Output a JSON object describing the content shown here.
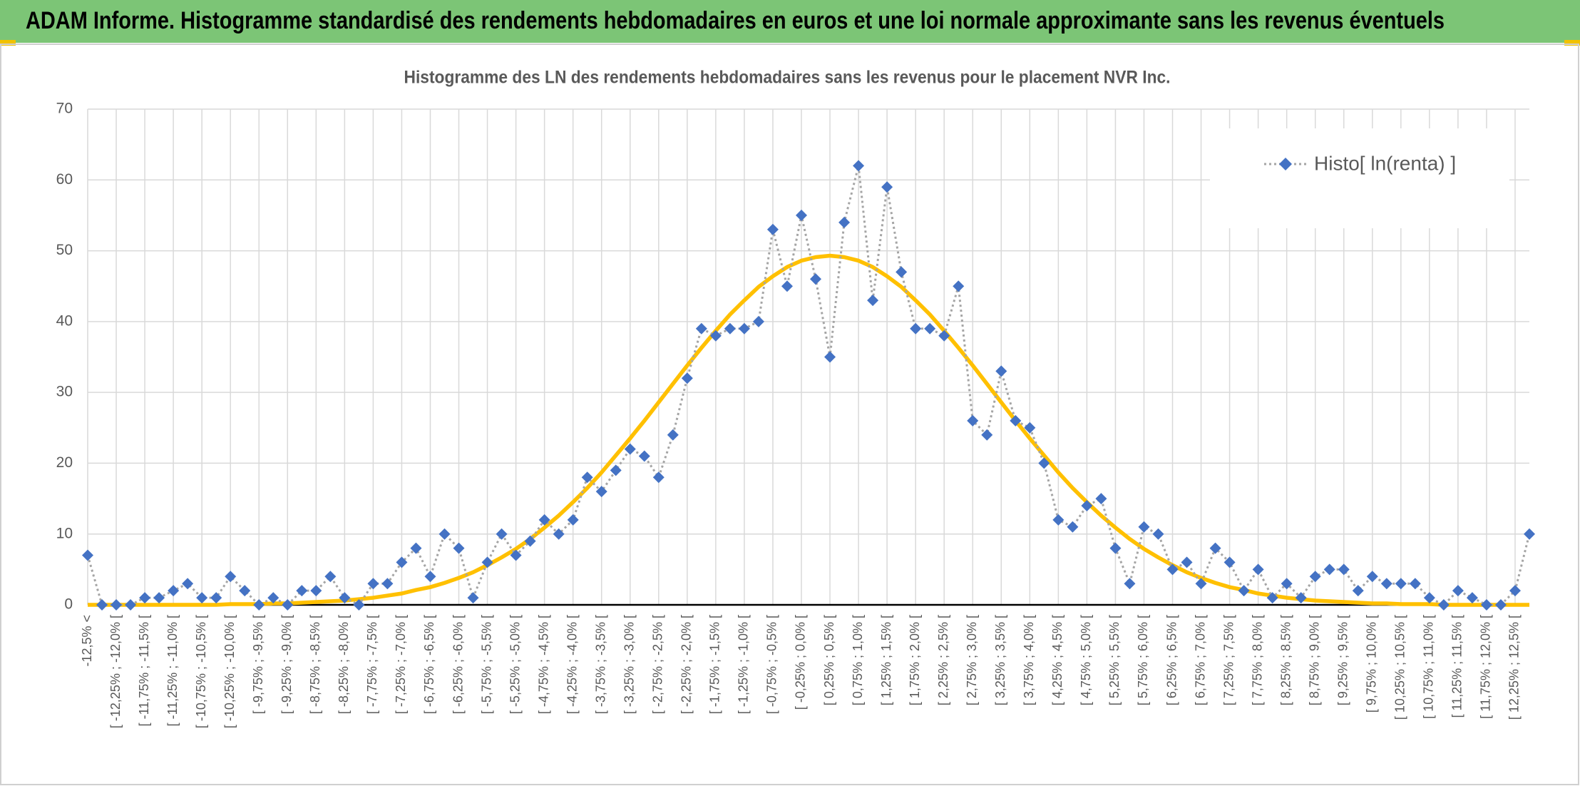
{
  "header": {
    "title": "ADAM Informe. Histogramme standardisé des rendements hebdomadaires en euros et une loi normale approximante sans les revenus éventuels"
  },
  "chart_data": {
    "type": "line",
    "title": "Histogramme des LN des rendements hebdomadaires sans les revenus pour le placement NVR Inc.",
    "categories": [
      "-12,5% <",
      null,
      "[ -12,25% ; -12,0% [",
      null,
      "[ -11,75% ; -11,5% [",
      null,
      "[ -11,25% ; -11,0% [",
      null,
      "[ -10,75% ; -10,5% [",
      null,
      "[ -10,25% ; -10,0% [",
      null,
      "[ -9,75% ; -9,5% [",
      null,
      "[ -9,25% ; -9,0% [",
      null,
      "[ -8,75% ; -8,5% [",
      null,
      "[ -8,25% ; -8,0% [",
      null,
      "[ -7,75% ; -7,5% [",
      null,
      "[ -7,25% ; -7,0% [",
      null,
      "[ -6,75% ; -6,5% [",
      null,
      "[ -6,25% ; -6,0% [",
      null,
      "[ -5,75% ; -5,5% [",
      null,
      "[ -5,25% ; -5,0% [",
      null,
      "[ -4,75% ; -4,5% [",
      null,
      "[ -4,25% ; -4,0% [",
      null,
      "[ -3,75% ; -3,5% [",
      null,
      "[ -3,25% ; -3,0% [",
      null,
      "[ -2,75% ; -2,5% [",
      null,
      "[ -2,25% ; -2,0% [",
      null,
      "[ -1,75% ; -1,5% [",
      null,
      "[ -1,25% ; -1,0% [",
      null,
      "[ -0,75% ; -0,5% [",
      null,
      "[ -0,25% ; 0,0% [",
      null,
      "[ 0,25% ; 0,5% [",
      null,
      "[ 0,75% ; 1,0% [",
      null,
      "[ 1,25% ; 1,5% [",
      null,
      "[ 1,75% ; 2,0% [",
      null,
      "[ 2,25% ; 2,5% [",
      null,
      "[ 2,75% ; 3,0% [",
      null,
      "[ 3,25% ; 3,5% [",
      null,
      "[ 3,75% ; 4,0% [",
      null,
      "[ 4,25% ; 4,5% [",
      null,
      "[ 4,75% ; 5,0% [",
      null,
      "[ 5,25% ; 5,5% [",
      null,
      "[ 5,75% ; 6,0% [",
      null,
      "[ 6,25% ; 6,5% [",
      null,
      "[ 6,75% ; 7,0% [",
      null,
      "[ 7,25% ; 7,5% [",
      null,
      "[ 7,75% ; 8,0% [",
      null,
      "[ 8,25% ; 8,5% [",
      null,
      "[ 8,75% ; 9,0% [",
      null,
      "[ 9,25% ; 9,5% [",
      null,
      "[ 9,75% ; 10,0% [",
      null,
      "[ 10,25% ; 10,5% [",
      null,
      "[ 10,75% ; 11,0% [",
      null,
      "[ 11,25% ; 11,5% [",
      null,
      "[ 11,75% ; 12,0% [",
      null,
      "[ 12,25% ; 12,5% [",
      null
    ],
    "series": [
      {
        "name": "Histo[ ln(renta) ]",
        "color": "#4472c4",
        "line_color": "#a5a5a5",
        "marker": "diamond",
        "values": [
          7,
          0,
          0,
          0,
          1,
          1,
          2,
          3,
          1,
          1,
          4,
          2,
          0,
          1,
          0,
          2,
          2,
          4,
          1,
          0,
          3,
          3,
          6,
          8,
          4,
          10,
          8,
          1,
          6,
          10,
          7,
          9,
          12,
          10,
          12,
          18,
          16,
          19,
          22,
          21,
          18,
          24,
          32,
          39,
          38,
          39,
          39,
          40,
          53,
          45,
          55,
          46,
          35,
          54,
          62,
          43,
          59,
          47,
          39,
          39,
          38,
          45,
          26,
          24,
          33,
          26,
          25,
          20,
          12,
          11,
          14,
          15,
          8,
          3,
          11,
          10,
          5,
          6,
          3,
          8,
          6,
          2,
          5,
          1,
          3,
          1,
          4,
          5,
          5,
          2,
          4,
          3,
          3,
          3,
          1,
          0,
          2,
          1,
          0,
          0,
          2,
          10
        ]
      },
      {
        "color": "#ffc000",
        "values": [
          0,
          0,
          0,
          0,
          0,
          0,
          0,
          0,
          0,
          0,
          0.1,
          0.1,
          0.1,
          0.2,
          0.2,
          0.3,
          0.4,
          0.5,
          0.6,
          0.8,
          1.0,
          1.3,
          1.6,
          2.1,
          2.5,
          3.1,
          3.8,
          4.6,
          5.6,
          6.7,
          7.9,
          9.3,
          10.9,
          12.6,
          14.5,
          16.5,
          18.7,
          21.1,
          23.5,
          26.0,
          28.6,
          31.2,
          33.8,
          36.3,
          38.7,
          41.0,
          43.0,
          44.9,
          46.4,
          47.7,
          48.6,
          49.1,
          49.3,
          49.1,
          48.6,
          47.7,
          46.4,
          44.9,
          43.0,
          41.0,
          38.7,
          36.3,
          33.8,
          31.2,
          28.6,
          26.0,
          23.5,
          21.1,
          18.7,
          16.5,
          14.5,
          12.6,
          10.9,
          9.3,
          7.9,
          6.7,
          5.6,
          4.6,
          3.8,
          3.1,
          2.5,
          2.1,
          1.6,
          1.3,
          1.0,
          0.8,
          0.6,
          0.5,
          0.4,
          0.3,
          0.2,
          0.2,
          0.1,
          0.1,
          0.1,
          0,
          0,
          0,
          0,
          0,
          0,
          0
        ]
      }
    ],
    "ylim": [
      0,
      70
    ],
    "yticks": [
      0,
      10,
      20,
      30,
      40,
      50,
      60,
      70
    ],
    "grid": true,
    "legend": "upper right"
  }
}
